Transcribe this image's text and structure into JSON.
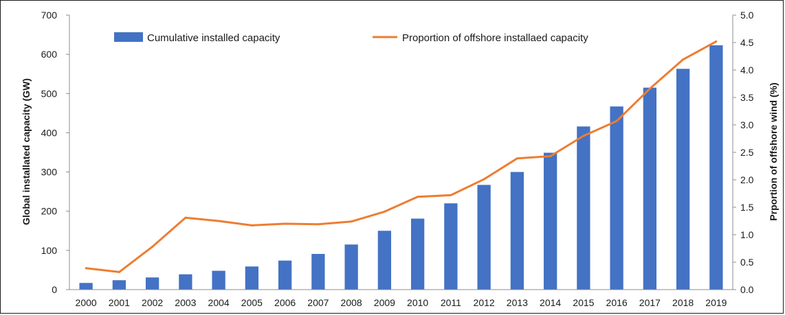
{
  "chart_data": {
    "type": "bar",
    "categories": [
      "2000",
      "2001",
      "2002",
      "2003",
      "2004",
      "2005",
      "2006",
      "2007",
      "2008",
      "2009",
      "2010",
      "2011",
      "2012",
      "2013",
      "2014",
      "2015",
      "2016",
      "2017",
      "2018",
      "2019"
    ],
    "series": [
      {
        "name": "Cumulative installed capacity",
        "type": "bar",
        "axis": "left",
        "color": "#4472c4",
        "values": [
          17,
          24,
          31,
          39,
          48,
          59,
          74,
          91,
          115,
          150,
          181,
          220,
          267,
          300,
          349,
          416,
          467,
          515,
          563,
          623
        ]
      },
      {
        "name": "Proportion of offshore installaed capacity",
        "type": "line",
        "axis": "right",
        "color": "#ed7d31",
        "values": [
          0.39,
          0.32,
          0.78,
          1.31,
          1.25,
          1.17,
          1.2,
          1.19,
          1.24,
          1.42,
          1.69,
          1.72,
          2.01,
          2.39,
          2.43,
          2.8,
          3.07,
          3.66,
          4.19,
          4.52
        ]
      }
    ],
    "ylabel_left": "Global installated capacity (GW)",
    "ylabel_right": "Prportion of offshore wind (%)",
    "xlabel": "",
    "ylim_left": [
      0,
      700
    ],
    "ylim_right": [
      0,
      5
    ],
    "yticks_left": [
      "0",
      "100",
      "200",
      "300",
      "400",
      "500",
      "600",
      "700"
    ],
    "yticks_right": [
      "0.0",
      "0.5",
      "1.0",
      "1.5",
      "2.0",
      "2.5",
      "3.0",
      "3.5",
      "4.0",
      "4.5",
      "5.0"
    ],
    "grid": false,
    "legend_position": "top"
  }
}
